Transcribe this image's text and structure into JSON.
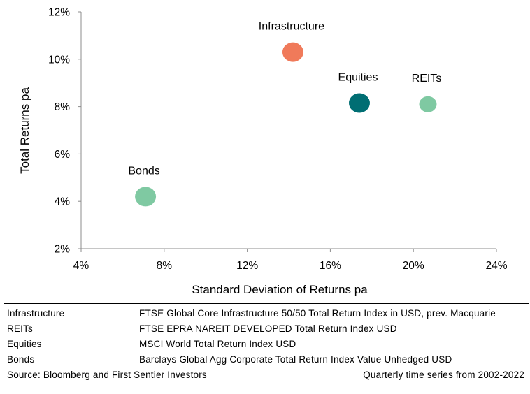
{
  "chart_data": {
    "type": "scatter",
    "xlabel": "Standard Deviation of Returns pa",
    "ylabel": "Total Returns pa",
    "xlim": [
      4,
      24
    ],
    "ylim": [
      2,
      12
    ],
    "x_ticks": [
      "4%",
      "8%",
      "12%",
      "16%",
      "20%",
      "24%"
    ],
    "y_ticks": [
      "2%",
      "4%",
      "6%",
      "8%",
      "10%",
      "12%"
    ],
    "x_tick_values": [
      4,
      8,
      12,
      16,
      20,
      24
    ],
    "y_tick_values": [
      2,
      4,
      6,
      8,
      10,
      12
    ],
    "grid": false,
    "points": [
      {
        "label": "Infrastructure",
        "x": 14.2,
        "y": 10.3,
        "color": "#f07a5a"
      },
      {
        "label": "Equities",
        "x": 17.4,
        "y": 8.15,
        "color": "#006e73"
      },
      {
        "label": "REITs",
        "x": 20.7,
        "y": 8.1,
        "color": "#7fc9a2"
      },
      {
        "label": "Bonds",
        "x": 7.1,
        "y": 4.2,
        "color": "#7fc9a2"
      }
    ]
  },
  "notes": {
    "rows": [
      {
        "label": "Infrastructure",
        "desc": "FTSE Global Core Infrastructure 50/50 Total Return Index in USD, prev. Macquarie"
      },
      {
        "label": "REITs",
        "desc": "FTSE EPRA NAREIT DEVELOPED Total Return Index USD"
      },
      {
        "label": "Equities",
        "desc": "MSCI World Total Return Index USD"
      },
      {
        "label": "Bonds",
        "desc": "Barclays Global Agg Corporate Total Return Index Value Unhedged USD"
      }
    ],
    "source": "Source: Bloomberg and First Sentier Investors",
    "frequency": "Quarterly time series from 2002-2022"
  }
}
